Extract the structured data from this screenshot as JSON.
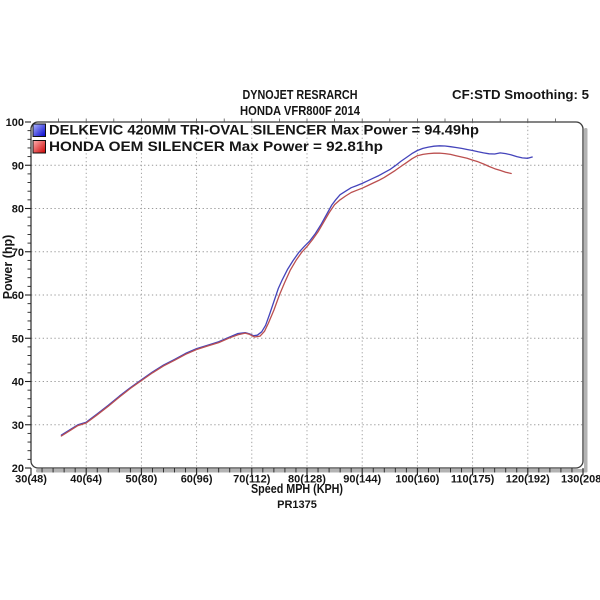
{
  "header": {
    "title_line1": "DYNOJET RESRARCH",
    "title_line2": "HONDA VFR800F 2014",
    "smoothing": "CF:STD Smoothing: 5"
  },
  "footer": {
    "code": "PR1375"
  },
  "colors": {
    "delkevic_line": "#4444bb",
    "honda_line": "#bb4f4f",
    "grid": "#999999",
    "frame": "#3a3a3a",
    "shadow": "#b3b3b3",
    "text": "#151515"
  },
  "chart_data": {
    "type": "line",
    "title": "DYNOJET RESRARCH",
    "subtitle": "HONDA VFR800F 2014",
    "xlabel": "Speed MPH (KPH)",
    "ylabel": "Power (hp)",
    "xlim": [
      30,
      130
    ],
    "ylim": [
      20,
      100
    ],
    "grid": true,
    "legend_position": "top-left",
    "x_tick_values": [
      30,
      40,
      50,
      60,
      70,
      80,
      90,
      100,
      110,
      120,
      130
    ],
    "x_tick_labels": [
      "30(48)",
      "40(64)",
      "50(80)",
      "60(96)",
      "70(112)",
      "80(128)",
      "90(144)",
      "100(160)",
      "110(175)",
      "120(192)",
      "130(208)"
    ],
    "y_tick_values": [
      20,
      30,
      40,
      50,
      60,
      70,
      80,
      90,
      100
    ],
    "y_tick_labels": [
      "20",
      "30",
      "40",
      "50",
      "60",
      "70",
      "80",
      "90",
      "100"
    ],
    "x_minor_step": 2,
    "y_minor_step": 2,
    "series": [
      {
        "name": "DELKEVIC 420MM TRI-OVAL SILENCER",
        "legend_label": "DELKEVIC 420MM TRI-OVAL SILENCER Max Power = 94.49hp",
        "max_power_hp": 94.49,
        "color": "#4444bb",
        "points": [
          [
            35.5,
            27.6
          ],
          [
            37,
            28.8
          ],
          [
            38.5,
            30
          ],
          [
            40,
            30.6
          ],
          [
            42,
            32.5
          ],
          [
            44,
            34.5
          ],
          [
            46,
            36.6
          ],
          [
            48,
            38.6
          ],
          [
            50,
            40.4
          ],
          [
            52,
            42.2
          ],
          [
            54,
            43.8
          ],
          [
            56,
            45.1
          ],
          [
            58,
            46.5
          ],
          [
            60,
            47.6
          ],
          [
            62,
            48.4
          ],
          [
            64,
            49.2
          ],
          [
            66,
            50.3
          ],
          [
            67.5,
            51.1
          ],
          [
            68.8,
            51.3
          ],
          [
            69.6,
            51
          ],
          [
            70.3,
            50.6
          ],
          [
            71,
            50.7
          ],
          [
            71.8,
            51.5
          ],
          [
            72.5,
            53
          ],
          [
            73.2,
            55.5
          ],
          [
            74,
            58.5
          ],
          [
            74.8,
            61.5
          ],
          [
            75.5,
            63.5
          ],
          [
            76.5,
            66
          ],
          [
            77.5,
            68
          ],
          [
            78.5,
            69.8
          ],
          [
            79.5,
            71.2
          ],
          [
            80.5,
            72.5
          ],
          [
            81.5,
            74.2
          ],
          [
            82.5,
            76.2
          ],
          [
            83.5,
            78.5
          ],
          [
            84.5,
            80.8
          ],
          [
            85.2,
            82
          ],
          [
            86,
            83.2
          ],
          [
            87,
            84
          ],
          [
            88,
            84.8
          ],
          [
            89,
            85.3
          ],
          [
            90,
            85.8
          ],
          [
            91,
            86.4
          ],
          [
            92,
            87
          ],
          [
            93,
            87.6
          ],
          [
            94,
            88.3
          ],
          [
            95,
            89
          ],
          [
            96,
            89.9
          ],
          [
            97,
            90.9
          ],
          [
            98,
            91.8
          ],
          [
            99,
            92.7
          ],
          [
            100,
            93.4
          ],
          [
            101,
            93.9
          ],
          [
            102,
            94.2
          ],
          [
            103,
            94.4
          ],
          [
            104,
            94.49
          ],
          [
            105,
            94.45
          ],
          [
            106,
            94.3
          ],
          [
            107,
            94.1
          ],
          [
            108,
            93.9
          ],
          [
            109,
            93.65
          ],
          [
            110,
            93.4
          ],
          [
            111,
            93.1
          ],
          [
            112,
            92.85
          ],
          [
            113,
            92.65
          ],
          [
            114,
            92.6
          ],
          [
            115,
            92.85
          ],
          [
            116,
            92.7
          ],
          [
            117,
            92.4
          ],
          [
            118,
            92
          ],
          [
            119,
            91.7
          ],
          [
            120,
            91.6
          ],
          [
            120.8,
            91.9
          ]
        ]
      },
      {
        "name": "HONDA OEM SILENCER",
        "legend_label": "HONDA OEM SILENCER Max Power = 92.81hp",
        "max_power_hp": 92.81,
        "color": "#bb4f4f",
        "points": [
          [
            35.5,
            27.4
          ],
          [
            37,
            28.6
          ],
          [
            38.5,
            29.8
          ],
          [
            40,
            30.4
          ],
          [
            42,
            32.3
          ],
          [
            44,
            34.3
          ],
          [
            46,
            36.4
          ],
          [
            48,
            38.4
          ],
          [
            50,
            40.2
          ],
          [
            52,
            42
          ],
          [
            54,
            43.6
          ],
          [
            56,
            44.9
          ],
          [
            58,
            46.3
          ],
          [
            60,
            47.4
          ],
          [
            62,
            48.2
          ],
          [
            64,
            49
          ],
          [
            66,
            50.1
          ],
          [
            67.5,
            50.8
          ],
          [
            68.8,
            51.2
          ],
          [
            69.6,
            50.9
          ],
          [
            70.5,
            50.3
          ],
          [
            71.5,
            50.5
          ],
          [
            72.3,
            51.6
          ],
          [
            73,
            53.5
          ],
          [
            74,
            56.5
          ],
          [
            75,
            60
          ],
          [
            76,
            63
          ],
          [
            77,
            65.8
          ],
          [
            78,
            68
          ],
          [
            79,
            69.8
          ],
          [
            80,
            71.2
          ],
          [
            81,
            72.8
          ],
          [
            82,
            74.6
          ],
          [
            83,
            76.8
          ],
          [
            84,
            79
          ],
          [
            85,
            80.9
          ],
          [
            86,
            82
          ],
          [
            87,
            82.9
          ],
          [
            88,
            83.7
          ],
          [
            89,
            84.2
          ],
          [
            90,
            84.7
          ],
          [
            91,
            85.3
          ],
          [
            92,
            85.9
          ],
          [
            93,
            86.5
          ],
          [
            94,
            87.2
          ],
          [
            95,
            88
          ],
          [
            96,
            88.8
          ],
          [
            97,
            89.7
          ],
          [
            98,
            90.6
          ],
          [
            99,
            91.5
          ],
          [
            100,
            92.2
          ],
          [
            101,
            92.5
          ],
          [
            102,
            92.7
          ],
          [
            103,
            92.78
          ],
          [
            104,
            92.81
          ],
          [
            105,
            92.7
          ],
          [
            106,
            92.5
          ],
          [
            107,
            92.2
          ],
          [
            108,
            91.9
          ],
          [
            109,
            91.6
          ],
          [
            110,
            91.2
          ],
          [
            111,
            90.8
          ],
          [
            112,
            90.3
          ],
          [
            113,
            89.7
          ],
          [
            114,
            89.2
          ],
          [
            115,
            88.8
          ],
          [
            116,
            88.4
          ],
          [
            117,
            88.1
          ]
        ]
      }
    ]
  }
}
